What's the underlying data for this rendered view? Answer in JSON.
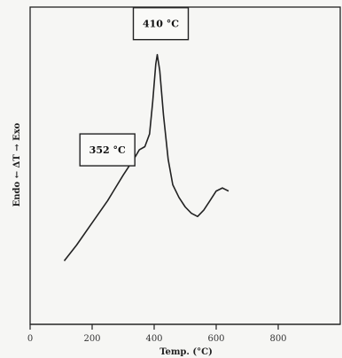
{
  "chart_data": {
    "type": "line",
    "xlabel": "Temp. (°C)",
    "ylabel": "Endo ← ΔT → Exo",
    "xlim": [
      0,
      1000
    ],
    "ylim": [
      0,
      100
    ],
    "x_ticks": [
      {
        "value": 0,
        "label": "0"
      },
      {
        "value": 200,
        "label": "200"
      },
      {
        "value": 400,
        "label": "400"
      },
      {
        "value": 600,
        "label": "600"
      },
      {
        "value": 800,
        "label": "800"
      }
    ],
    "series": [
      {
        "x": [
          110,
          150,
          200,
          250,
          300,
          340,
          352,
          370,
          385,
          395,
          405,
          410,
          418,
          430,
          445,
          460,
          480,
          500,
          520,
          540,
          560,
          580,
          600,
          620,
          640
        ],
        "y": [
          20,
          25,
          32,
          39,
          47,
          53,
          55,
          56,
          60,
          70,
          82,
          85,
          80,
          66,
          52,
          44,
          40,
          37,
          35,
          34,
          36,
          39,
          42,
          43,
          42
        ]
      }
    ],
    "annotations": [
      {
        "text": "352 °C",
        "x": 352,
        "y": 55
      },
      {
        "text": "410 °C",
        "x": 410,
        "y": 85
      }
    ]
  }
}
